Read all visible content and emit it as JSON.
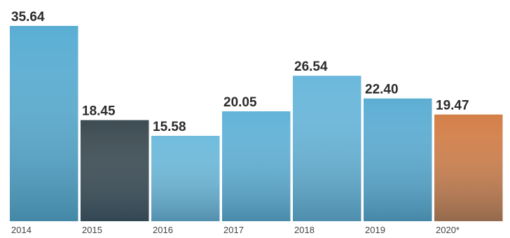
{
  "chart_data": {
    "type": "bar",
    "categories": [
      "2014",
      "2015",
      "2016",
      "2017",
      "2018",
      "2019",
      "2020*"
    ],
    "values": [
      35.64,
      18.45,
      15.58,
      20.05,
      26.54,
      22.4,
      19.47
    ],
    "value_labels": [
      "35.64",
      "18.45",
      "15.58",
      "20.05",
      "26.54",
      "22.40",
      "19.47"
    ],
    "colors": [
      "#5aaed3",
      "#3d4b52",
      "#6fbbdc",
      "#62b3d8",
      "#6ab8dc",
      "#5daed4",
      "#d47f48"
    ]
  }
}
